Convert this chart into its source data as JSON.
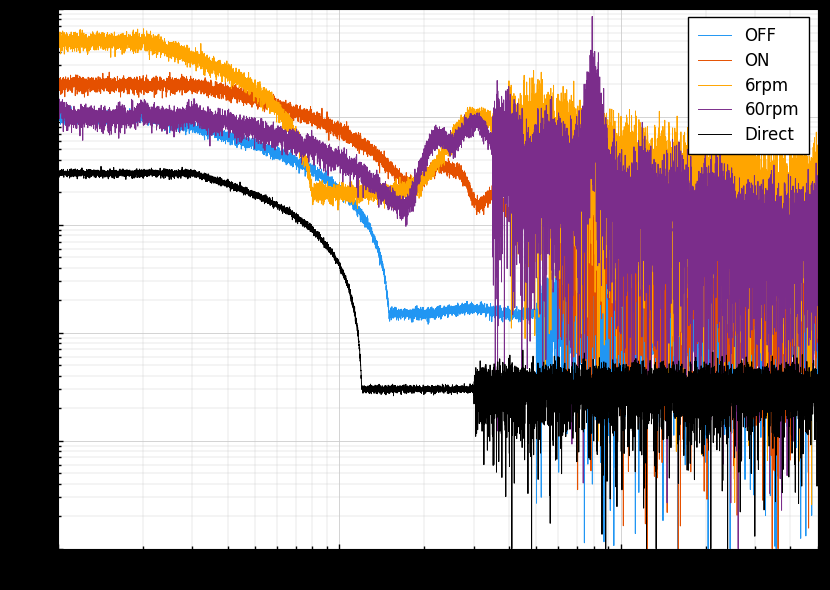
{
  "title": "",
  "xlabel": "",
  "ylabel": "",
  "background_color": "#ffffff",
  "figure_background": "#000000",
  "grid_color": "#cccccc",
  "legend_entries": [
    "OFF",
    "ON",
    "6rpm",
    "60rpm",
    "Direct"
  ],
  "line_colors": [
    "#2196F3",
    "#E55000",
    "#FFA500",
    "#7B2D8B",
    "#000000"
  ],
  "seed": 12345,
  "n_points": 10000,
  "freq_min": 1,
  "freq_max": 500
}
